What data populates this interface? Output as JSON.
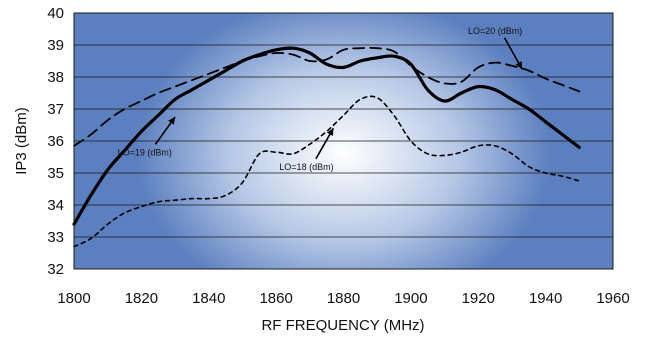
{
  "chart_data": {
    "type": "line",
    "title": "",
    "xlabel": "RF FREQUENCY (MHz)",
    "ylabel": "IP3 (dBm)",
    "xlim": [
      1800,
      1960
    ],
    "ylim": [
      32,
      40
    ],
    "x_ticks": [
      1800,
      1820,
      1840,
      1860,
      1880,
      1900,
      1920,
      1940,
      1960
    ],
    "y_ticks": [
      32,
      33,
      34,
      35,
      36,
      37,
      38,
      39,
      40
    ],
    "grid": true,
    "legend": "none",
    "colors": {
      "plot_edge": "#5b7fbf",
      "plot_center": "#ffffff",
      "gridline": "#1a1a1a",
      "series": "#000000"
    },
    "series": [
      {
        "style": "solid",
        "x": [
          1800,
          1805,
          1810,
          1815,
          1820,
          1825,
          1830,
          1835,
          1840,
          1845,
          1850,
          1855,
          1860,
          1865,
          1870,
          1875,
          1880,
          1885,
          1890,
          1895,
          1900,
          1905,
          1910,
          1915,
          1920,
          1925,
          1930,
          1935,
          1940,
          1945,
          1950
        ],
        "y": [
          33.4,
          34.3,
          35.1,
          35.7,
          36.3,
          36.8,
          37.3,
          37.6,
          37.9,
          38.2,
          38.5,
          38.7,
          38.85,
          38.9,
          38.75,
          38.4,
          38.3,
          38.5,
          38.6,
          38.65,
          38.4,
          37.6,
          37.25,
          37.5,
          37.7,
          37.6,
          37.3,
          37.0,
          36.6,
          36.2,
          35.8
        ]
      },
      {
        "style": "dashed",
        "x": [
          1800,
          1805,
          1810,
          1815,
          1820,
          1825,
          1830,
          1835,
          1840,
          1845,
          1850,
          1855,
          1860,
          1865,
          1870,
          1875,
          1880,
          1885,
          1890,
          1895,
          1900,
          1905,
          1910,
          1915,
          1920,
          1925,
          1930,
          1935,
          1940,
          1945,
          1950
        ],
        "y": [
          35.85,
          36.2,
          36.65,
          37.0,
          37.25,
          37.5,
          37.7,
          37.9,
          38.1,
          38.3,
          38.5,
          38.65,
          38.75,
          38.7,
          38.5,
          38.55,
          38.85,
          38.9,
          38.9,
          38.8,
          38.35,
          38.0,
          37.8,
          37.85,
          38.3,
          38.45,
          38.35,
          38.2,
          37.95,
          37.75,
          37.55
        ]
      },
      {
        "style": "dotted",
        "x": [
          1800,
          1805,
          1810,
          1815,
          1820,
          1825,
          1830,
          1835,
          1840,
          1845,
          1850,
          1855,
          1860,
          1865,
          1870,
          1875,
          1880,
          1885,
          1890,
          1895,
          1900,
          1905,
          1910,
          1915,
          1920,
          1925,
          1930,
          1935,
          1940,
          1945,
          1950
        ],
        "y": [
          32.7,
          32.95,
          33.4,
          33.75,
          33.95,
          34.1,
          34.15,
          34.2,
          34.2,
          34.3,
          34.7,
          35.6,
          35.65,
          35.6,
          35.9,
          36.3,
          36.8,
          37.3,
          37.35,
          36.8,
          36.0,
          35.6,
          35.55,
          35.65,
          35.85,
          35.85,
          35.6,
          35.2,
          35.0,
          34.9,
          34.75
        ]
      }
    ],
    "annotations": [
      {
        "text": "LO=19 (dBm)",
        "x": 1821,
        "y": 35.55,
        "arrow_to_x": 1830,
        "arrow_to_y": 36.75
      },
      {
        "text": "LO=18 (dBm)",
        "x": 1869,
        "y": 35.1,
        "arrow_to_x": 1877,
        "arrow_to_y": 36.4
      },
      {
        "text": "LO=20 (dBm)",
        "x": 1925,
        "y": 39.35,
        "arrow_to_x": 1933,
        "arrow_to_y": 38.25
      }
    ]
  }
}
